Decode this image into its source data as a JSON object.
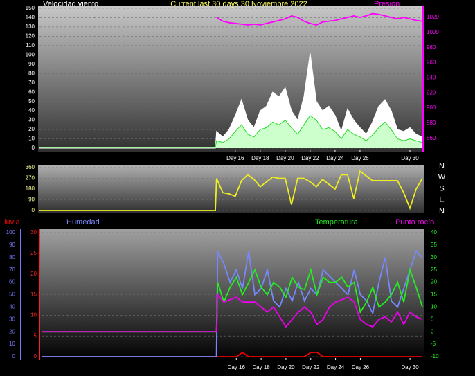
{
  "chart_data": [
    {
      "type": "line",
      "title": "Current last 30 days 30 Noviembre 2022",
      "y_label": "Velocidad viento",
      "y2_label": "Presión",
      "x": [
        0.3,
        14.4,
        14.5,
        15,
        15.5,
        16,
        16.5,
        17,
        17.5,
        18,
        18.5,
        19,
        19.5,
        20,
        20.5,
        21,
        21.5,
        22,
        22.5,
        23,
        23.5,
        24,
        24.5,
        25,
        25.5,
        26,
        26.5,
        27,
        27.5,
        28,
        28.5,
        29,
        29.5,
        30,
        30.5,
        31
      ],
      "xlim": [
        0.3,
        31
      ],
      "xticks": [
        {
          "value": 16,
          "label": "Day 16"
        },
        {
          "value": 18,
          "label": "Day 18"
        },
        {
          "value": 20,
          "label": "Day 20"
        },
        {
          "value": 22,
          "label": "Day 22"
        },
        {
          "value": 24,
          "label": "Day 24"
        },
        {
          "value": 26,
          "label": "Day 26"
        },
        {
          "value": 30,
          "label": "Day 30"
        }
      ],
      "ylim": [
        0,
        150
      ],
      "yticks": [
        0,
        10,
        20,
        30,
        40,
        50,
        60,
        70,
        80,
        90,
        100,
        110,
        120,
        130,
        140,
        150
      ],
      "ycolor": "#ffffff",
      "y2lim": [
        847,
        1032
      ],
      "y2ticks": [
        860,
        880,
        900,
        920,
        940,
        960,
        980,
        1000,
        1020
      ],
      "y2color": "#ff00ff",
      "grid": true,
      "series": [
        {
          "color": "#ffffff",
          "fill": "#ffffff",
          "values": [
            0,
            0,
            18,
            12,
            20,
            35,
            52,
            30,
            22,
            40,
            45,
            60,
            55,
            65,
            40,
            30,
            55,
            102,
            50,
            40,
            45,
            35,
            18,
            42,
            30,
            22,
            15,
            28,
            45,
            52,
            40,
            20,
            18,
            22,
            15,
            12
          ]
        },
        {
          "color": "#22dd22",
          "fill": "#ccffcc",
          "values": [
            1,
            1,
            8,
            6,
            10,
            18,
            25,
            15,
            12,
            20,
            22,
            28,
            25,
            30,
            22,
            15,
            25,
            35,
            30,
            20,
            22,
            18,
            10,
            20,
            15,
            12,
            8,
            14,
            22,
            28,
            20,
            10,
            8,
            10,
            8,
            6
          ]
        },
        {
          "color": "#ff00ff",
          "axis": "y2",
          "values": [
            null,
            null,
            1020,
            1015,
            1013,
            1012,
            1011,
            1010,
            1011,
            1010,
            1012,
            1014,
            1016,
            1018,
            1022,
            1020,
            1015,
            1012,
            1010,
            1014,
            1015,
            1016,
            1018,
            1020,
            1022,
            1020,
            1022,
            1025,
            1024,
            1022,
            1020,
            1018,
            1020,
            1018,
            1016,
            1015
          ]
        }
      ]
    },
    {
      "type": "line",
      "x": [
        0.3,
        14.4,
        14.5,
        15,
        15.5,
        16,
        16.5,
        17,
        17.5,
        18,
        18.5,
        19,
        19.5,
        20,
        20.5,
        21,
        21.5,
        22,
        22.5,
        23,
        23.5,
        24,
        24.5,
        25,
        25.5,
        26,
        26.5,
        27,
        27.5,
        28,
        28.5,
        29,
        29.5,
        30,
        30.5,
        31
      ],
      "xlim": [
        0.3,
        31
      ],
      "ylim": [
        0,
        360
      ],
      "yticks": [
        0,
        90,
        180,
        270,
        360
      ],
      "ycolor": "#ffff99",
      "y2lim": [
        0,
        360
      ],
      "y2ticks": [
        {
          "value": 0,
          "label": "N"
        },
        {
          "value": 90,
          "label": "E"
        },
        {
          "value": 180,
          "label": "S"
        },
        {
          "value": 270,
          "label": "W"
        },
        {
          "value": 360,
          "label": "N"
        }
      ],
      "y2color": "#ffffff",
      "grid": true,
      "series": [
        {
          "color": "#eeee22",
          "values": [
            0,
            0,
            270,
            150,
            140,
            120,
            250,
            300,
            260,
            200,
            240,
            280,
            270,
            270,
            50,
            270,
            270,
            240,
            200,
            260,
            220,
            180,
            300,
            300,
            100,
            330,
            290,
            250,
            250,
            250,
            250,
            250,
            150,
            20,
            180,
            270
          ]
        }
      ]
    },
    {
      "type": "line",
      "x": [
        0.3,
        14.4,
        14.5,
        15,
        15.5,
        16,
        16.5,
        17,
        17.5,
        18,
        18.5,
        19,
        19.5,
        20,
        20.5,
        21,
        21.5,
        22,
        22.5,
        23,
        23.5,
        24,
        24.5,
        25,
        25.5,
        26,
        26.5,
        27,
        27.5,
        28,
        28.5,
        29,
        29.5,
        30,
        30.5,
        31
      ],
      "xlim": [
        0.3,
        31
      ],
      "xticks": [
        {
          "value": 16,
          "label": "Day 16"
        },
        {
          "value": 18,
          "label": "Day 18"
        },
        {
          "value": 20,
          "label": "Day 20"
        },
        {
          "value": 22,
          "label": "Day 22"
        },
        {
          "value": 24,
          "label": "Day 24"
        },
        {
          "value": 26,
          "label": "Day 26"
        },
        {
          "value": 30,
          "label": "Day 30"
        }
      ],
      "ylim": [
        0,
        30
      ],
      "yticks": [
        0,
        5,
        10,
        15,
        20,
        25,
        30
      ],
      "ycolor": "#ff2222",
      "y2lim": [
        -10,
        40
      ],
      "y2ticks": [
        -10,
        -5,
        0,
        5,
        10,
        15,
        20,
        25,
        30,
        35,
        40
      ],
      "y2color": "#22ff22",
      "y3lim": [
        0,
        100
      ],
      "y3ticks": [
        0,
        10,
        20,
        30,
        40,
        50,
        60,
        70,
        80,
        90,
        100
      ],
      "y3color": "#7777ff",
      "grid": true,
      "series": [
        {
          "name": "Lluvia",
          "color": "#ee0000",
          "values": [
            0,
            0,
            0,
            0,
            0,
            0,
            1,
            0,
            0,
            0,
            0,
            0,
            0,
            0,
            0,
            0,
            0,
            1,
            1,
            0,
            0,
            0,
            0,
            0,
            0,
            0,
            0,
            0,
            0,
            0,
            0,
            0,
            0,
            0,
            0,
            0
          ]
        },
        {
          "name": "Humedad",
          "color": "#7788ff",
          "axis": "y3",
          "values": [
            0,
            0,
            85,
            75,
            60,
            70,
            55,
            85,
            50,
            55,
            70,
            45,
            40,
            55,
            45,
            60,
            45,
            55,
            50,
            70,
            65,
            60,
            55,
            50,
            70,
            50,
            45,
            35,
            60,
            80,
            45,
            40,
            55,
            70,
            85,
            80
          ]
        },
        {
          "name": "Temperatura",
          "color": "#22ee22",
          "axis": "y2",
          "values": [
            0,
            0,
            20,
            12,
            18,
            22,
            15,
            20,
            25,
            18,
            15,
            20,
            18,
            14,
            22,
            18,
            17,
            25,
            15,
            22,
            20,
            20,
            22,
            18,
            20,
            8,
            12,
            18,
            10,
            12,
            15,
            20,
            12,
            25,
            18,
            10
          ]
        },
        {
          "name": "Punto rocío",
          "color": "#ee00ee",
          "axis": "y2",
          "values": [
            0,
            0,
            15,
            12,
            13,
            14,
            12,
            12,
            12,
            10,
            8,
            10,
            6,
            2,
            5,
            8,
            10,
            8,
            3,
            5,
            10,
            12,
            13,
            14,
            12,
            5,
            3,
            2,
            5,
            6,
            4,
            8,
            3,
            8,
            6,
            5
          ]
        }
      ]
    }
  ]
}
